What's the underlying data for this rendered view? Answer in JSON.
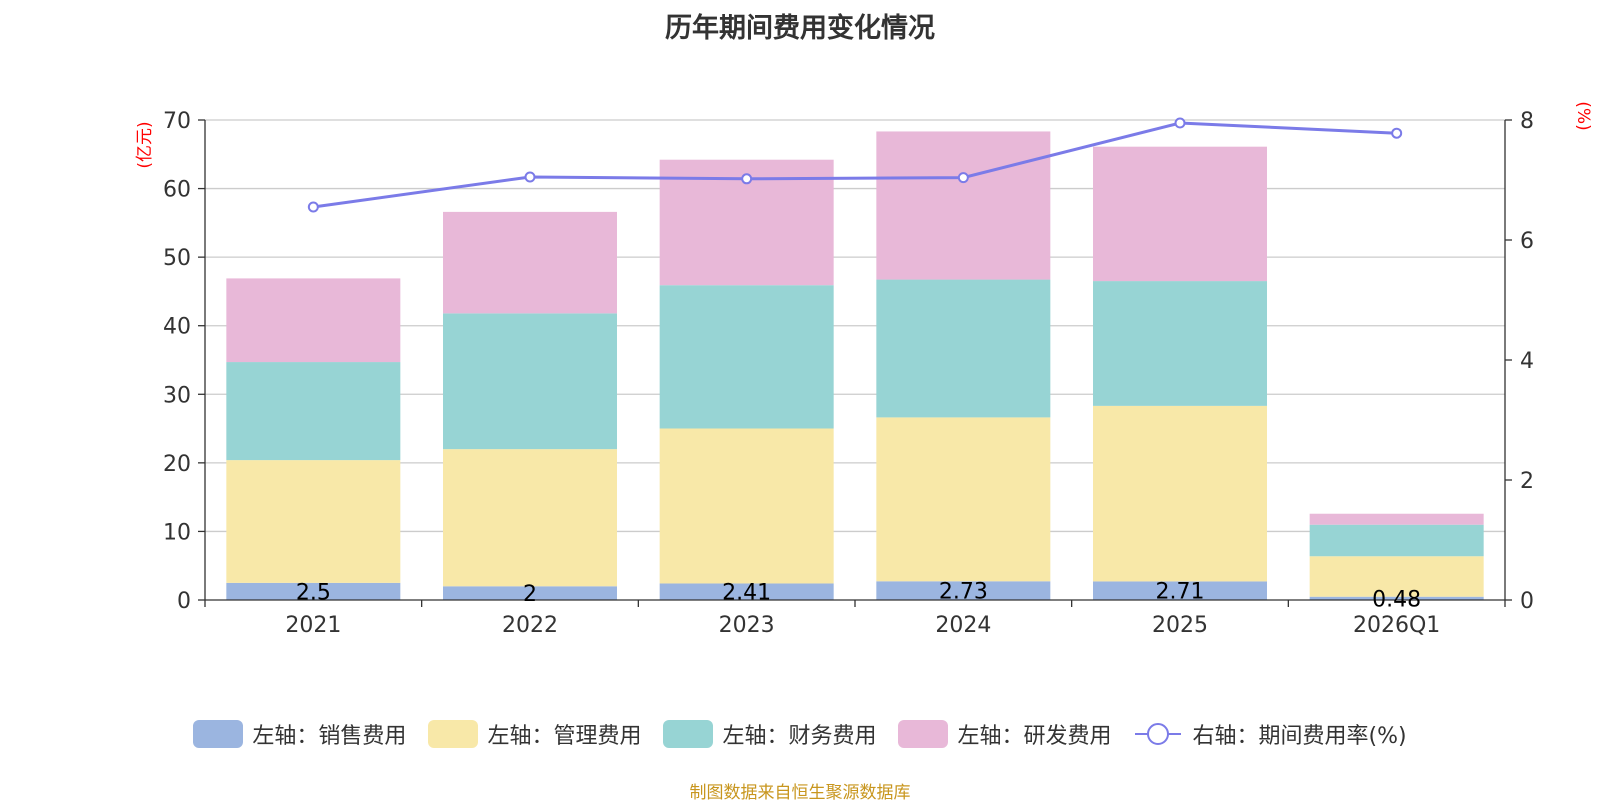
{
  "chart_data": {
    "type": "bar",
    "title": "历年期间费用变化情况",
    "left_axis_unit": "(亿元)",
    "right_axis_unit": "(%)",
    "categories": [
      "2021",
      "2022",
      "2023",
      "2024",
      "2025",
      "2026Q1"
    ],
    "left_ylim": [
      0,
      70
    ],
    "left_ticks": [
      0,
      10,
      20,
      30,
      40,
      50,
      60,
      70
    ],
    "right_ylim": [
      0,
      8
    ],
    "right_ticks": [
      0,
      2,
      4,
      6,
      8
    ],
    "stacked": true,
    "series": [
      {
        "name": "左轴：销售费用",
        "color": "#9bb5e0",
        "values": [
          2.5,
          2,
          2.41,
          2.73,
          2.71,
          0.48
        ],
        "labels": [
          "2.5",
          "2",
          "2.41",
          "2.73",
          "2.71",
          "0.48"
        ]
      },
      {
        "name": "左轴：管理费用",
        "color": "#f8e8a8",
        "values": [
          17.9,
          20.0,
          22.6,
          23.9,
          25.6,
          5.9
        ]
      },
      {
        "name": "左轴：财务费用",
        "color": "#97d4d4",
        "values": [
          14.3,
          19.8,
          20.9,
          20.1,
          18.2,
          4.6
        ]
      },
      {
        "name": "左轴：研发费用",
        "color": "#e8b8d8",
        "values": [
          12.2,
          14.8,
          18.3,
          21.6,
          19.6,
          1.6
        ]
      }
    ],
    "line_series": {
      "name": "右轴：期间费用率(%)",
      "color": "#7b7be8",
      "values": [
        6.55,
        7.05,
        7.02,
        7.04,
        7.95,
        7.78
      ]
    }
  },
  "source": "制图数据来自恒生聚源数据库"
}
